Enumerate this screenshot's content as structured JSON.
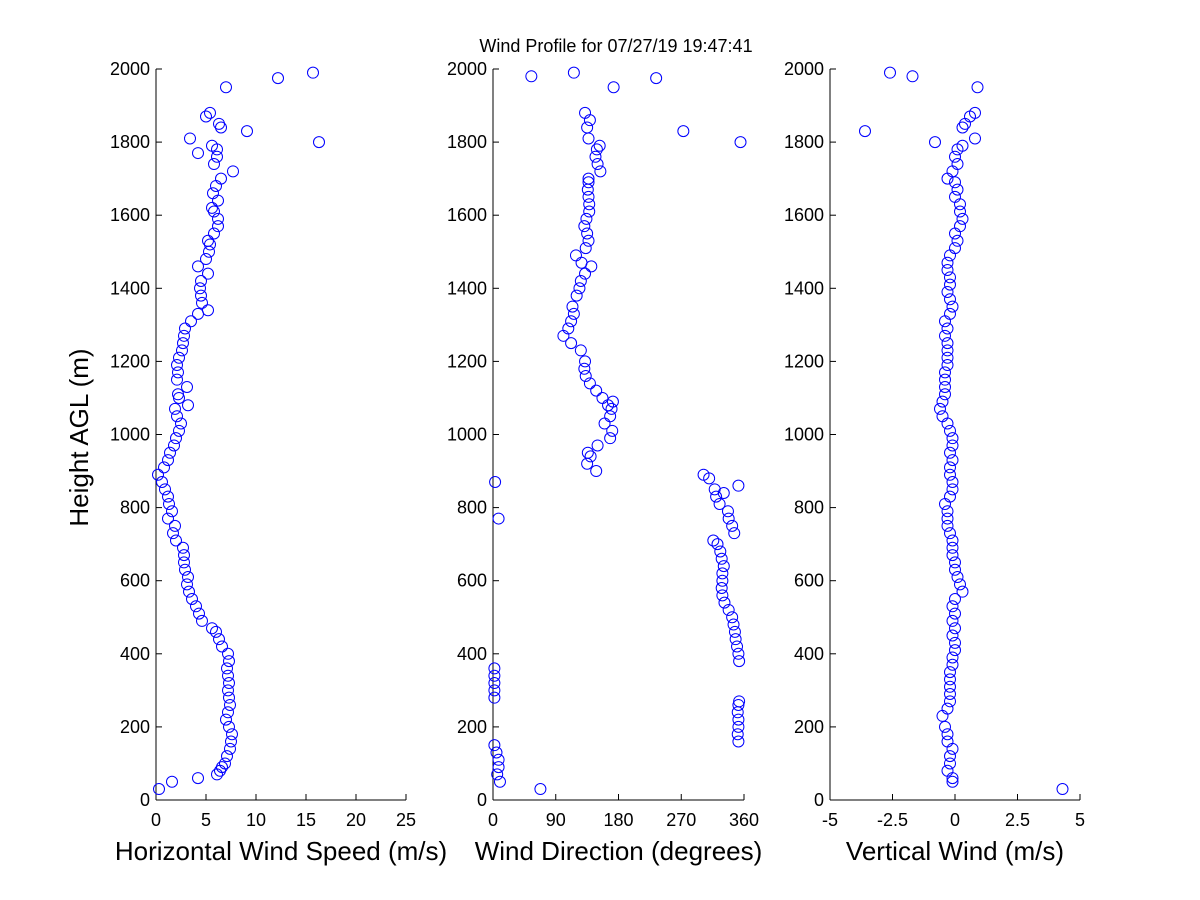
{
  "title": "Wind Profile for  07/27/19 19:47:41",
  "colors": {
    "marker": "#0000ff",
    "axis": "#000000",
    "background": "#ffffff"
  },
  "chart_data": [
    {
      "type": "scatter",
      "xlabel": "Horizontal Wind Speed (m/s)",
      "ylabel": "Height AGL (m)",
      "xlim": [
        0,
        25
      ],
      "ylim": [
        0,
        2000
      ],
      "xticks": [
        0,
        5,
        10,
        15,
        20,
        25
      ],
      "xtick_labels": [
        "0",
        "5",
        "10",
        "15",
        "20",
        "25"
      ],
      "yticks": [
        0,
        200,
        400,
        600,
        800,
        1000,
        1200,
        1400,
        1600,
        1800,
        2000
      ],
      "ytick_labels": [
        "0",
        "200",
        "400",
        "600",
        "800",
        "1000",
        "1200",
        "1400",
        "1600",
        "1800",
        "2000"
      ],
      "marker": "o",
      "points": [
        [
          0.3,
          30
        ],
        [
          1.6,
          50
        ],
        [
          4.2,
          60
        ],
        [
          6.1,
          70
        ],
        [
          6.4,
          80
        ],
        [
          6.6,
          90
        ],
        [
          6.9,
          100
        ],
        [
          7.1,
          120
        ],
        [
          7.4,
          140
        ],
        [
          7.5,
          160
        ],
        [
          7.6,
          180
        ],
        [
          7.3,
          200
        ],
        [
          7.0,
          220
        ],
        [
          7.2,
          240
        ],
        [
          7.4,
          260
        ],
        [
          7.3,
          280
        ],
        [
          7.2,
          300
        ],
        [
          7.3,
          320
        ],
        [
          7.2,
          340
        ],
        [
          7.1,
          360
        ],
        [
          7.3,
          380
        ],
        [
          7.2,
          400
        ],
        [
          6.6,
          420
        ],
        [
          6.3,
          440
        ],
        [
          6.0,
          460
        ],
        [
          5.6,
          470
        ],
        [
          4.6,
          490
        ],
        [
          4.3,
          510
        ],
        [
          4.0,
          530
        ],
        [
          3.6,
          550
        ],
        [
          3.3,
          570
        ],
        [
          3.1,
          590
        ],
        [
          3.2,
          610
        ],
        [
          2.9,
          630
        ],
        [
          2.8,
          650
        ],
        [
          2.8,
          670
        ],
        [
          2.7,
          690
        ],
        [
          2.0,
          710
        ],
        [
          1.7,
          730
        ],
        [
          1.9,
          750
        ],
        [
          1.2,
          770
        ],
        [
          1.6,
          790
        ],
        [
          1.3,
          810
        ],
        [
          1.2,
          830
        ],
        [
          0.9,
          850
        ],
        [
          0.6,
          870
        ],
        [
          0.2,
          890
        ],
        [
          0.8,
          910
        ],
        [
          1.2,
          930
        ],
        [
          1.4,
          950
        ],
        [
          1.8,
          970
        ],
        [
          2.0,
          990
        ],
        [
          2.3,
          1010
        ],
        [
          2.5,
          1030
        ],
        [
          2.1,
          1050
        ],
        [
          1.9,
          1070
        ],
        [
          3.2,
          1080
        ],
        [
          2.3,
          1100
        ],
        [
          2.2,
          1110
        ],
        [
          3.1,
          1130
        ],
        [
          2.1,
          1150
        ],
        [
          2.2,
          1170
        ],
        [
          2.1,
          1190
        ],
        [
          2.3,
          1210
        ],
        [
          2.6,
          1230
        ],
        [
          2.7,
          1250
        ],
        [
          2.8,
          1270
        ],
        [
          2.9,
          1290
        ],
        [
          3.5,
          1310
        ],
        [
          4.2,
          1330
        ],
        [
          5.2,
          1340
        ],
        [
          4.6,
          1360
        ],
        [
          4.5,
          1380
        ],
        [
          4.4,
          1400
        ],
        [
          4.5,
          1420
        ],
        [
          5.2,
          1440
        ],
        [
          4.2,
          1460
        ],
        [
          5.0,
          1480
        ],
        [
          5.3,
          1500
        ],
        [
          5.4,
          1520
        ],
        [
          5.2,
          1530
        ],
        [
          5.8,
          1550
        ],
        [
          6.2,
          1570
        ],
        [
          6.2,
          1590
        ],
        [
          5.8,
          1610
        ],
        [
          5.6,
          1620
        ],
        [
          6.2,
          1640
        ],
        [
          5.7,
          1660
        ],
        [
          6.0,
          1680
        ],
        [
          6.5,
          1700
        ],
        [
          7.7,
          1720
        ],
        [
          5.8,
          1740
        ],
        [
          6.1,
          1760
        ],
        [
          6.1,
          1780
        ],
        [
          5.6,
          1790
        ],
        [
          4.2,
          1770
        ],
        [
          3.4,
          1810
        ],
        [
          9.1,
          1830
        ],
        [
          6.5,
          1840
        ],
        [
          6.3,
          1850
        ],
        [
          5.0,
          1870
        ],
        [
          5.4,
          1880
        ],
        [
          7.0,
          1950
        ],
        [
          12.2,
          1975
        ],
        [
          15.7,
          1990
        ],
        [
          16.3,
          1800
        ]
      ]
    },
    {
      "type": "scatter",
      "xlabel": "Wind Direction (degrees)",
      "ylabel": "",
      "xlim": [
        0,
        360
      ],
      "ylim": [
        0,
        2000
      ],
      "xticks": [
        0,
        90,
        180,
        270,
        360
      ],
      "xtick_labels": [
        "0",
        "90",
        "180",
        "270",
        "360"
      ],
      "yticks": [
        0,
        200,
        400,
        600,
        800,
        1000,
        1200,
        1400,
        1600,
        1800,
        2000
      ],
      "ytick_labels": [
        "0",
        "200",
        "400",
        "600",
        "800",
        "1000",
        "1200",
        "1400",
        "1600",
        "1800",
        "2000"
      ],
      "marker": "o",
      "points": [
        [
          68,
          30
        ],
        [
          10,
          50
        ],
        [
          6,
          70
        ],
        [
          8,
          90
        ],
        [
          8,
          110
        ],
        [
          5,
          130
        ],
        [
          2,
          150
        ],
        [
          352,
          160
        ],
        [
          351,
          180
        ],
        [
          352,
          200
        ],
        [
          352,
          220
        ],
        [
          351,
          240
        ],
        [
          352,
          260
        ],
        [
          353,
          270
        ],
        [
          2,
          280
        ],
        [
          2,
          300
        ],
        [
          2,
          320
        ],
        [
          2,
          340
        ],
        [
          2,
          360
        ],
        [
          353,
          380
        ],
        [
          352,
          400
        ],
        [
          350,
          420
        ],
        [
          348,
          440
        ],
        [
          347,
          460
        ],
        [
          345,
          480
        ],
        [
          343,
          500
        ],
        [
          338,
          520
        ],
        [
          332,
          540
        ],
        [
          329,
          560
        ],
        [
          328,
          580
        ],
        [
          329,
          600
        ],
        [
          329,
          620
        ],
        [
          331,
          640
        ],
        [
          328,
          660
        ],
        [
          326,
          680
        ],
        [
          322,
          700
        ],
        [
          316,
          710
        ],
        [
          346,
          730
        ],
        [
          343,
          750
        ],
        [
          338,
          770
        ],
        [
          337,
          790
        ],
        [
          325,
          810
        ],
        [
          320,
          830
        ],
        [
          331,
          840
        ],
        [
          318,
          850
        ],
        [
          352,
          860
        ],
        [
          310,
          880
        ],
        [
          302,
          890
        ],
        [
          3,
          870
        ],
        [
          8,
          770
        ],
        [
          148,
          900
        ],
        [
          135,
          920
        ],
        [
          140,
          940
        ],
        [
          136,
          950
        ],
        [
          150,
          970
        ],
        [
          168,
          990
        ],
        [
          171,
          1010
        ],
        [
          160,
          1030
        ],
        [
          168,
          1050
        ],
        [
          170,
          1070
        ],
        [
          165,
          1080
        ],
        [
          172,
          1090
        ],
        [
          157,
          1100
        ],
        [
          148,
          1120
        ],
        [
          139,
          1140
        ],
        [
          133,
          1160
        ],
        [
          131,
          1180
        ],
        [
          132,
          1200
        ],
        [
          126,
          1230
        ],
        [
          112,
          1250
        ],
        [
          101,
          1270
        ],
        [
          108,
          1290
        ],
        [
          112,
          1310
        ],
        [
          116,
          1330
        ],
        [
          114,
          1350
        ],
        [
          120,
          1380
        ],
        [
          124,
          1400
        ],
        [
          126,
          1420
        ],
        [
          132,
          1440
        ],
        [
          141,
          1460
        ],
        [
          127,
          1470
        ],
        [
          119,
          1490
        ],
        [
          133,
          1510
        ],
        [
          137,
          1530
        ],
        [
          135,
          1550
        ],
        [
          131,
          1570
        ],
        [
          134,
          1590
        ],
        [
          138,
          1610
        ],
        [
          138,
          1630
        ],
        [
          137,
          1650
        ],
        [
          136,
          1670
        ],
        [
          137,
          1690
        ],
        [
          137,
          1700
        ],
        [
          154,
          1720
        ],
        [
          150,
          1740
        ],
        [
          147,
          1760
        ],
        [
          149,
          1780
        ],
        [
          153,
          1790
        ],
        [
          137,
          1810
        ],
        [
          135,
          1840
        ],
        [
          139,
          1860
        ],
        [
          132,
          1880
        ],
        [
          55,
          1980
        ],
        [
          116,
          1990
        ],
        [
          173,
          1950
        ],
        [
          234,
          1975
        ],
        [
          273,
          1830
        ],
        [
          355,
          1800
        ]
      ]
    },
    {
      "type": "scatter",
      "xlabel": "Vertical Wind (m/s)",
      "ylabel": "",
      "xlim": [
        -5,
        5
      ],
      "ylim": [
        0,
        2000
      ],
      "xticks": [
        -5,
        -2.5,
        0,
        2.5,
        5
      ],
      "xtick_labels": [
        "-5",
        "-2.5",
        "0",
        "2.5",
        "5"
      ],
      "yticks": [
        0,
        200,
        400,
        600,
        800,
        1000,
        1200,
        1400,
        1600,
        1800,
        2000
      ],
      "ytick_labels": [
        "0",
        "200",
        "400",
        "600",
        "800",
        "1000",
        "1200",
        "1400",
        "1600",
        "1800",
        "2000"
      ],
      "marker": "o",
      "points": [
        [
          4.3,
          30
        ],
        [
          -0.1,
          50
        ],
        [
          -0.1,
          60
        ],
        [
          -0.3,
          80
        ],
        [
          -0.2,
          100
        ],
        [
          -0.2,
          120
        ],
        [
          -0.1,
          140
        ],
        [
          -0.3,
          160
        ],
        [
          -0.3,
          180
        ],
        [
          -0.4,
          200
        ],
        [
          -0.5,
          230
        ],
        [
          -0.3,
          250
        ],
        [
          -0.2,
          270
        ],
        [
          -0.2,
          290
        ],
        [
          -0.2,
          310
        ],
        [
          -0.2,
          330
        ],
        [
          -0.2,
          350
        ],
        [
          -0.1,
          370
        ],
        [
          -0.1,
          390
        ],
        [
          0.0,
          410
        ],
        [
          0.0,
          430
        ],
        [
          -0.1,
          450
        ],
        [
          0.0,
          470
        ],
        [
          -0.1,
          490
        ],
        [
          0.0,
          510
        ],
        [
          -0.1,
          530
        ],
        [
          0.0,
          550
        ],
        [
          0.3,
          570
        ],
        [
          0.2,
          590
        ],
        [
          0.1,
          610
        ],
        [
          0.0,
          630
        ],
        [
          0.0,
          650
        ],
        [
          -0.1,
          670
        ],
        [
          -0.1,
          690
        ],
        [
          -0.1,
          710
        ],
        [
          -0.2,
          730
        ],
        [
          -0.3,
          750
        ],
        [
          -0.3,
          770
        ],
        [
          -0.3,
          790
        ],
        [
          -0.4,
          810
        ],
        [
          -0.2,
          830
        ],
        [
          -0.1,
          850
        ],
        [
          -0.1,
          870
        ],
        [
          -0.2,
          890
        ],
        [
          -0.2,
          910
        ],
        [
          -0.1,
          930
        ],
        [
          -0.2,
          950
        ],
        [
          -0.1,
          970
        ],
        [
          -0.1,
          990
        ],
        [
          -0.2,
          1010
        ],
        [
          -0.3,
          1030
        ],
        [
          -0.5,
          1050
        ],
        [
          -0.6,
          1070
        ],
        [
          -0.5,
          1090
        ],
        [
          -0.4,
          1110
        ],
        [
          -0.4,
          1130
        ],
        [
          -0.4,
          1150
        ],
        [
          -0.4,
          1170
        ],
        [
          -0.3,
          1190
        ],
        [
          -0.3,
          1210
        ],
        [
          -0.3,
          1230
        ],
        [
          -0.3,
          1250
        ],
        [
          -0.4,
          1270
        ],
        [
          -0.3,
          1290
        ],
        [
          -0.4,
          1310
        ],
        [
          -0.2,
          1330
        ],
        [
          -0.1,
          1350
        ],
        [
          -0.2,
          1370
        ],
        [
          -0.3,
          1390
        ],
        [
          -0.2,
          1410
        ],
        [
          -0.2,
          1430
        ],
        [
          -0.3,
          1450
        ],
        [
          -0.3,
          1470
        ],
        [
          -0.2,
          1490
        ],
        [
          0.0,
          1510
        ],
        [
          0.1,
          1530
        ],
        [
          0.0,
          1550
        ],
        [
          0.2,
          1570
        ],
        [
          0.3,
          1590
        ],
        [
          0.2,
          1610
        ],
        [
          0.2,
          1630
        ],
        [
          0.0,
          1650
        ],
        [
          0.1,
          1670
        ],
        [
          0.0,
          1690
        ],
        [
          -0.3,
          1700
        ],
        [
          -0.1,
          1720
        ],
        [
          0.1,
          1740
        ],
        [
          0.0,
          1760
        ],
        [
          0.1,
          1780
        ],
        [
          0.3,
          1790
        ],
        [
          -0.8,
          1800
        ],
        [
          0.8,
          1810
        ],
        [
          0.3,
          1840
        ],
        [
          0.4,
          1850
        ],
        [
          0.6,
          1870
        ],
        [
          0.8,
          1880
        ],
        [
          0.9,
          1950
        ],
        [
          -1.7,
          1980
        ],
        [
          -2.6,
          1990
        ],
        [
          -3.6,
          1830
        ]
      ]
    }
  ]
}
